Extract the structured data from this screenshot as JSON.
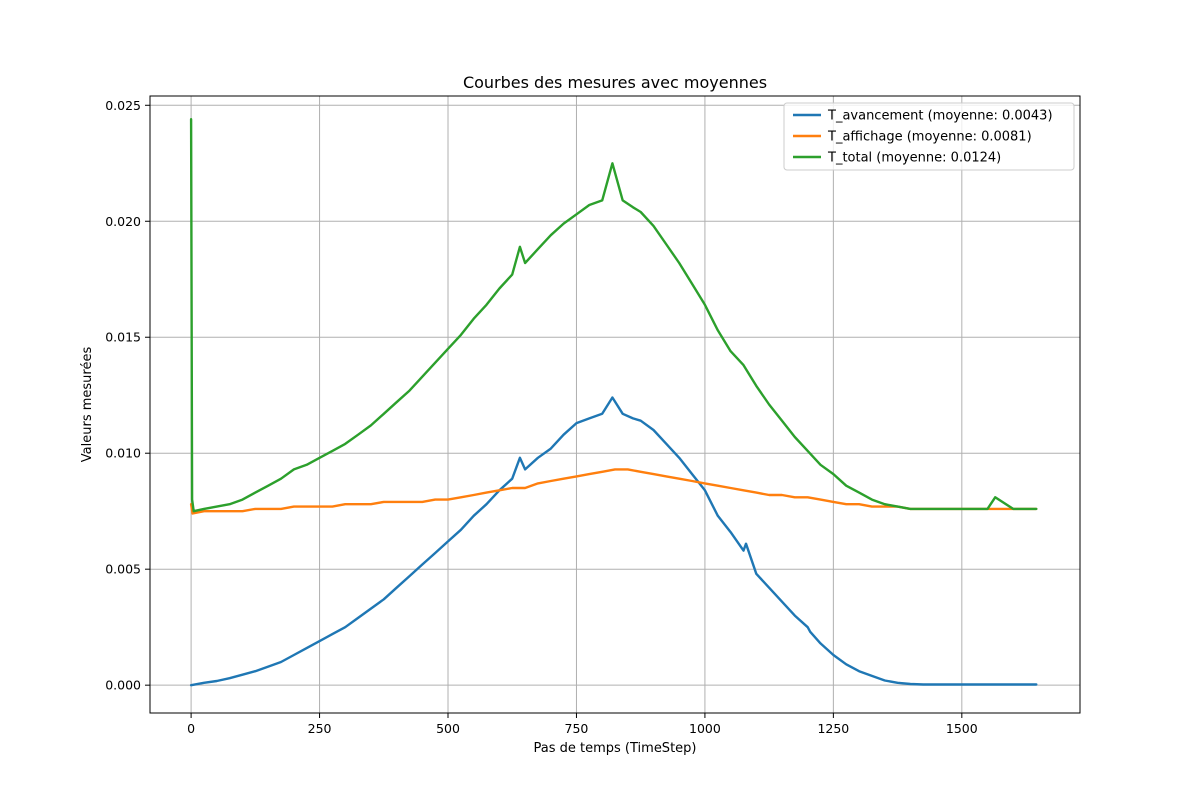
{
  "chart_data": {
    "type": "line",
    "title": "Courbes des mesures avec moyennes",
    "xlabel": "Pas de temps (TimeStep)",
    "ylabel": "Valeurs mesurées",
    "xlim": [
      -80,
      1730
    ],
    "ylim": [
      -0.0012,
      0.0254
    ],
    "xticks": [
      0,
      250,
      500,
      750,
      1000,
      1250,
      1500
    ],
    "xtick_labels": [
      "0",
      "250",
      "500",
      "750",
      "1000",
      "1250",
      "1500"
    ],
    "yticks": [
      0.0,
      0.005,
      0.01,
      0.015,
      0.02,
      0.025
    ],
    "ytick_labels": [
      "0.000",
      "0.005",
      "0.010",
      "0.015",
      "0.020",
      "0.025"
    ],
    "grid": true,
    "legend_position": "top-right",
    "series": [
      {
        "name": "T_avancement (moyenne: 0.0043)",
        "color": "#1f77b4",
        "x": [
          0,
          25,
          50,
          75,
          100,
          125,
          150,
          175,
          200,
          225,
          250,
          275,
          300,
          325,
          350,
          375,
          400,
          425,
          450,
          475,
          500,
          525,
          550,
          575,
          600,
          625,
          640,
          650,
          675,
          700,
          725,
          750,
          775,
          800,
          820,
          840,
          860,
          875,
          900,
          925,
          950,
          975,
          1000,
          1025,
          1050,
          1075,
          1080,
          1100,
          1125,
          1150,
          1175,
          1200,
          1205,
          1225,
          1250,
          1275,
          1300,
          1325,
          1350,
          1375,
          1400,
          1425,
          1450,
          1500,
          1550,
          1600,
          1645
        ],
        "y": [
          0.0,
          0.0001,
          0.00018,
          0.0003,
          0.00045,
          0.0006,
          0.0008,
          0.001,
          0.0013,
          0.0016,
          0.0019,
          0.0022,
          0.0025,
          0.0029,
          0.0033,
          0.0037,
          0.0042,
          0.0047,
          0.0052,
          0.0057,
          0.0062,
          0.0067,
          0.0073,
          0.0078,
          0.0084,
          0.0089,
          0.0098,
          0.0093,
          0.0098,
          0.0102,
          0.0108,
          0.0113,
          0.0115,
          0.0117,
          0.0124,
          0.0117,
          0.0115,
          0.0114,
          0.011,
          0.0104,
          0.0098,
          0.0091,
          0.0084,
          0.0073,
          0.0066,
          0.0058,
          0.0061,
          0.0048,
          0.0042,
          0.0036,
          0.003,
          0.0025,
          0.0023,
          0.0018,
          0.0013,
          0.0009,
          0.0006,
          0.0004,
          0.0002,
          0.0001,
          5e-05,
          3e-05,
          3e-05,
          3e-05,
          3e-05,
          3e-05,
          3e-05
        ]
      },
      {
        "name": "T_affichage (moyenne: 0.0081)",
        "color": "#ff7f0e",
        "x": [
          0,
          3,
          25,
          50,
          75,
          100,
          125,
          150,
          175,
          200,
          225,
          250,
          275,
          300,
          325,
          350,
          375,
          400,
          425,
          450,
          475,
          500,
          525,
          550,
          575,
          600,
          625,
          650,
          675,
          700,
          725,
          750,
          775,
          800,
          825,
          850,
          875,
          900,
          925,
          950,
          975,
          1000,
          1025,
          1050,
          1075,
          1100,
          1125,
          1150,
          1175,
          1200,
          1225,
          1250,
          1275,
          1300,
          1325,
          1350,
          1375,
          1400,
          1450,
          1500,
          1550,
          1600,
          1645
        ],
        "y": [
          0.0078,
          0.0074,
          0.0075,
          0.0075,
          0.0075,
          0.0075,
          0.0076,
          0.0076,
          0.0076,
          0.0077,
          0.0077,
          0.0077,
          0.0077,
          0.0078,
          0.0078,
          0.0078,
          0.0079,
          0.0079,
          0.0079,
          0.0079,
          0.008,
          0.008,
          0.0081,
          0.0082,
          0.0083,
          0.0084,
          0.0085,
          0.0085,
          0.0087,
          0.0088,
          0.0089,
          0.009,
          0.0091,
          0.0092,
          0.0093,
          0.0093,
          0.0092,
          0.0091,
          0.009,
          0.0089,
          0.0088,
          0.0087,
          0.0086,
          0.0085,
          0.0084,
          0.0083,
          0.0082,
          0.0082,
          0.0081,
          0.0081,
          0.008,
          0.0079,
          0.0078,
          0.0078,
          0.0077,
          0.0077,
          0.0077,
          0.0076,
          0.0076,
          0.0076,
          0.0076,
          0.0076,
          0.0076
        ]
      },
      {
        "name": "T_total (moyenne: 0.0124)",
        "color": "#2ca02c",
        "x": [
          0,
          2,
          5,
          25,
          50,
          75,
          100,
          125,
          150,
          175,
          200,
          225,
          250,
          275,
          300,
          325,
          350,
          375,
          400,
          425,
          450,
          475,
          500,
          525,
          550,
          575,
          600,
          625,
          640,
          650,
          675,
          700,
          725,
          750,
          775,
          800,
          820,
          840,
          860,
          875,
          900,
          925,
          950,
          975,
          1000,
          1025,
          1050,
          1075,
          1100,
          1125,
          1150,
          1175,
          1200,
          1225,
          1250,
          1275,
          1300,
          1325,
          1350,
          1375,
          1400,
          1425,
          1450,
          1500,
          1550,
          1565,
          1600,
          1645
        ],
        "y": [
          0.0244,
          0.008,
          0.0075,
          0.0076,
          0.0077,
          0.0078,
          0.008,
          0.0083,
          0.0086,
          0.0089,
          0.0093,
          0.0095,
          0.0098,
          0.0101,
          0.0104,
          0.0108,
          0.0112,
          0.0117,
          0.0122,
          0.0127,
          0.0133,
          0.0139,
          0.0145,
          0.0151,
          0.0158,
          0.0164,
          0.0171,
          0.0177,
          0.0189,
          0.0182,
          0.0188,
          0.0194,
          0.0199,
          0.0203,
          0.0207,
          0.0209,
          0.0225,
          0.0209,
          0.0206,
          0.0204,
          0.0198,
          0.019,
          0.0182,
          0.0173,
          0.0164,
          0.0153,
          0.0144,
          0.0138,
          0.0129,
          0.0121,
          0.0114,
          0.0107,
          0.0101,
          0.0095,
          0.0091,
          0.0086,
          0.0083,
          0.008,
          0.0078,
          0.0077,
          0.0076,
          0.0076,
          0.0076,
          0.0076,
          0.0076,
          0.0081,
          0.0076,
          0.0076
        ]
      }
    ]
  }
}
